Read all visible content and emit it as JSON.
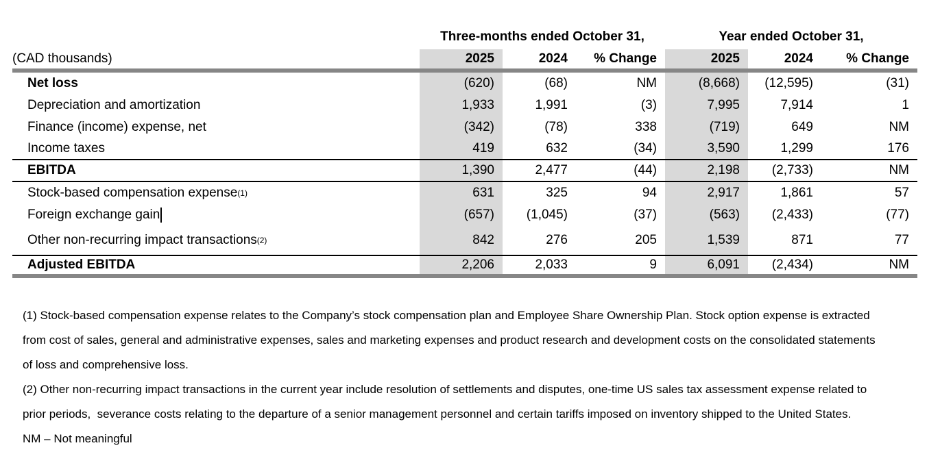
{
  "table": {
    "unit_label": "(CAD thousands)",
    "group_headers": [
      {
        "label": "Three-months ended October 31,"
      },
      {
        "label": "Year ended October 31,"
      }
    ],
    "column_headers": [
      "2025",
      "2024",
      "% Change",
      "2025",
      "2024",
      "% Change"
    ],
    "rows": [
      {
        "label": "Net loss",
        "bold": true,
        "values": [
          "(620)",
          "(68)",
          "NM",
          "(8,668)",
          "(12,595)",
          "(31)"
        ]
      },
      {
        "label": "Depreciation and amortization",
        "values": [
          "1,933",
          "1,991",
          "(3)",
          "7,995",
          "7,914",
          "1"
        ]
      },
      {
        "label": "Finance (income) expense, net",
        "values": [
          "(342)",
          "(78)",
          "338",
          "(719)",
          "649",
          "NM"
        ]
      },
      {
        "label": "Income taxes",
        "rule_below": "thin",
        "values": [
          "419",
          "632",
          "(34)",
          "3,590",
          "1,299",
          "176"
        ]
      },
      {
        "label": "EBITDA",
        "bold": true,
        "rule_below": "thin",
        "values": [
          "1,390",
          "2,477",
          "(44)",
          "2,198",
          "(2,733)",
          "NM"
        ]
      },
      {
        "label": "Stock-based compensation expense",
        "sup": "(1)",
        "values": [
          "631",
          "325",
          "94",
          "2,917",
          "1,861",
          "57"
        ]
      },
      {
        "label": "Foreign exchange gain",
        "cursor": true,
        "values": [
          "(657)",
          "(1,045)",
          "(37)",
          "(563)",
          "(2,433)",
          "(77)"
        ]
      },
      {
        "label": "Other non-recurring impact transactions",
        "sup": "(2)",
        "tall": true,
        "rule_below": "thin",
        "values": [
          "842",
          "276",
          "205",
          "1,539",
          "871",
          "77"
        ]
      },
      {
        "label": "Adjusted EBITDA",
        "bold": true,
        "rule_below": "thick",
        "values": [
          "2,206",
          "2,033",
          "9",
          "6,091",
          "(2,434)",
          "NM"
        ]
      }
    ],
    "highlight_color": "#d9d9d9",
    "rule_color": "#868686"
  },
  "footnotes": {
    "lines": [
      "(1) Stock-based compensation expense relates to the Company’s stock compensation plan and Employee Share Ownership Plan. Stock option expense is extracted",
      "from cost of sales, general and administrative expenses, sales and marketing expenses and product research and development costs on the consolidated statements",
      "of loss and comprehensive loss.",
      "(2) Other non-recurring impact transactions in the current year include resolution of settlements and disputes, one-time US sales tax assessment expense related to",
      "prior periods,  severance costs relating to the departure of a senior management personnel and certain tariffs imposed on inventory shipped to the United States.",
      "NM – Not meaningful"
    ]
  }
}
